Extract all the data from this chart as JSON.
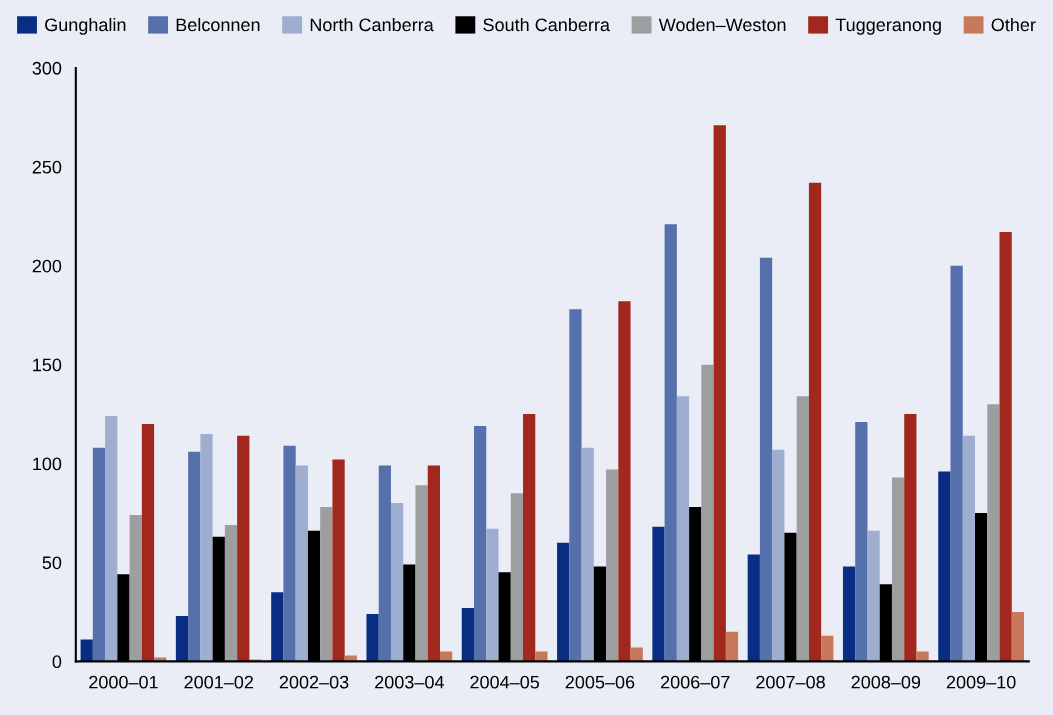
{
  "chart_data": {
    "type": "bar",
    "categories": [
      "2000–01",
      "2001–02",
      "2002–03",
      "2003–04",
      "2004–05",
      "2005–06",
      "2006–07",
      "2007–08",
      "2008–09",
      "2009–10"
    ],
    "series": [
      {
        "name": "Gunghalin",
        "color": "#0a2d84",
        "values": [
          11,
          23,
          35,
          24,
          27,
          60,
          68,
          54,
          48,
          96
        ]
      },
      {
        "name": "Belconnen",
        "color": "#5570aa",
        "values": [
          108,
          106,
          109,
          99,
          119,
          178,
          221,
          204,
          121,
          200
        ]
      },
      {
        "name": "North Canberra",
        "color": "#9eadd0",
        "values": [
          124,
          115,
          99,
          80,
          67,
          108,
          134,
          107,
          66,
          114
        ]
      },
      {
        "name": "South Canberra",
        "color": "#000000",
        "values": [
          44,
          63,
          66,
          49,
          45,
          48,
          78,
          65,
          39,
          75
        ]
      },
      {
        "name": "Woden–Weston",
        "color": "#9d9e9f",
        "values": [
          74,
          69,
          78,
          89,
          85,
          97,
          150,
          134,
          93,
          130
        ]
      },
      {
        "name": "Tuggeranong",
        "color": "#a1271f",
        "values": [
          120,
          114,
          102,
          99,
          125,
          182,
          271,
          242,
          125,
          217
        ]
      },
      {
        "name": "Other",
        "color": "#c8785b",
        "values": [
          2,
          1,
          3,
          5,
          5,
          7,
          15,
          13,
          5,
          25
        ]
      }
    ],
    "ylim": [
      0,
      300
    ],
    "yticks": [
      0,
      50,
      100,
      150,
      200,
      250,
      300
    ],
    "grid": false,
    "legend": "top"
  }
}
